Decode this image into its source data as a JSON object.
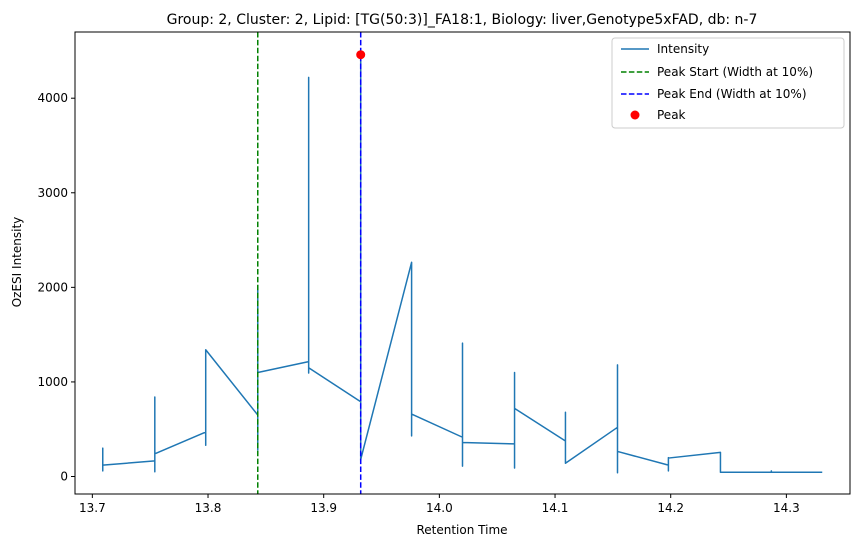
{
  "chart_data": {
    "type": "line",
    "title": "Group: 2, Cluster: 2, Lipid: [TG(50:3)]_FA18:1, Biology: liver,Genotype5xFAD, db: n-7",
    "xlabel": "Retention Time",
    "ylabel": "OzESI Intensity",
    "xlim": [
      13.685,
      14.355
    ],
    "ylim": [
      -185,
      4700
    ],
    "x_ticks": [
      13.7,
      13.8,
      13.9,
      14.0,
      14.1,
      14.2,
      14.3
    ],
    "x_tick_labels": [
      "13.7",
      "13.8",
      "13.9",
      "14.0",
      "14.1",
      "14.2",
      "14.3"
    ],
    "y_ticks": [
      0,
      1000,
      2000,
      3000,
      4000
    ],
    "y_tick_labels": [
      "0",
      "1000",
      "2000",
      "3000",
      "4000"
    ],
    "grid": false,
    "legend_position": "top-right",
    "series": [
      {
        "name": "Intensity",
        "color": "#1f77b4",
        "x": [
          13.709,
          13.709,
          13.709,
          13.709,
          13.754,
          13.754,
          13.754,
          13.754,
          13.798,
          13.798,
          13.798,
          13.798,
          13.843,
          13.843,
          13.843,
          13.843,
          13.887,
          13.887,
          13.887,
          13.887,
          13.932,
          13.932,
          13.932,
          13.932,
          13.976,
          13.976,
          13.976,
          13.976,
          14.02,
          14.02,
          14.02,
          14.02,
          14.065,
          14.065,
          14.065,
          14.065,
          14.109,
          14.109,
          14.109,
          14.109,
          14.154,
          14.154,
          14.154,
          14.154,
          14.198,
          14.198,
          14.198,
          14.198,
          14.243,
          14.243,
          14.243,
          14.243,
          14.287,
          14.287,
          14.287,
          14.331
        ],
        "y": [
          60,
          300,
          60,
          120,
          165,
          840,
          50,
          240,
          470,
          980,
          330,
          1340,
          650,
          2010,
          280,
          1100,
          1215,
          4220,
          1095,
          1150,
          790,
          4460,
          170,
          180,
          2265,
          430,
          660,
          660,
          415,
          1410,
          110,
          360,
          345,
          1100,
          90,
          720,
          375,
          680,
          370,
          140,
          520,
          1180,
          40,
          265,
          120,
          60,
          200,
          195,
          255,
          45,
          45,
          45,
          45,
          60,
          45,
          45
        ]
      },
      {
        "name": "Peak Start (Width at 10%)",
        "color": "#008000",
        "style": "dashed",
        "x": 13.843
      },
      {
        "name": "Peak End (Width at 10%)",
        "color": "#0000ff",
        "style": "dashed",
        "x": 13.932
      },
      {
        "name": "Peak",
        "color": "#ff0000",
        "marker": "circle",
        "x": 13.932,
        "y": 4460
      }
    ]
  }
}
